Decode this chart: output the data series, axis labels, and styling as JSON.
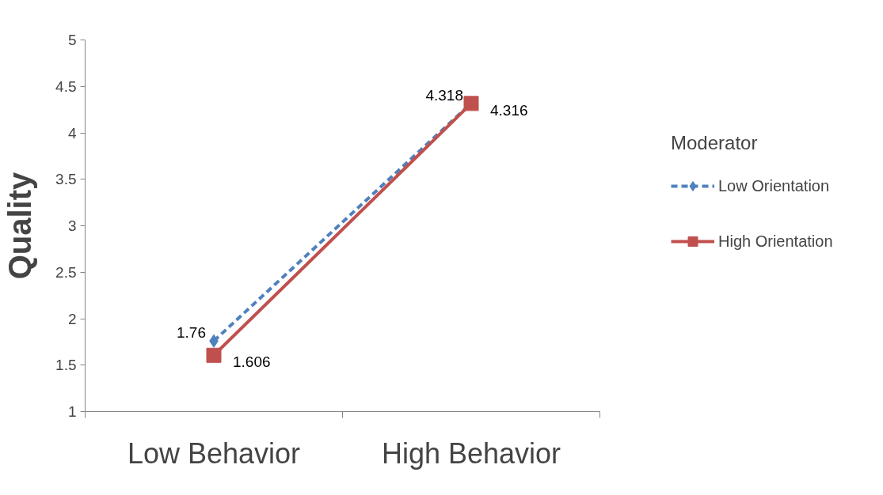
{
  "chart_data": {
    "type": "line",
    "ylabel": "Quality",
    "legend_title": "Moderator",
    "categories": [
      "Low Behavior",
      "High Behavior"
    ],
    "series": [
      {
        "name": "Low Orientation",
        "color": "#4f81bd",
        "values": [
          1.76,
          4.318
        ],
        "marker": "diamond",
        "line_style": "dashed"
      },
      {
        "name": "High Orientation",
        "color": "#c0504d",
        "values": [
          1.606,
          4.316
        ],
        "marker": "square",
        "line_style": "solid"
      }
    ],
    "ylim": [
      1,
      5
    ],
    "yticks": [
      1,
      1.5,
      2,
      2.5,
      3,
      3.5,
      4,
      4.5,
      5
    ],
    "grid": false,
    "legend": "right",
    "data_labels": true
  }
}
